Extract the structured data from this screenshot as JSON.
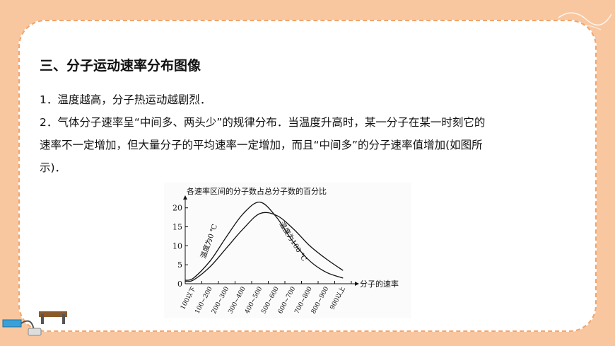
{
  "slide": {
    "title": "三、分子运动速率分布图像",
    "line1": "1．温度越高，分子热运动越剧烈．",
    "line2": "2．气体分子速率呈“中间多、两头少”的规律分布．当温度升高时，某一分子在某一时刻它的",
    "line3": "速率不一定增加，但大量分子的平均速率一定增加，而且“中间多”的分子速率值增加(如图所",
    "line4": "示)．"
  },
  "chart_data": {
    "type": "line",
    "title": "各速率区间的分子数占总分子数的百分比",
    "xlabel": "分子的速率",
    "ylabel": "",
    "categories": [
      "100以下",
      "100~200",
      "200~300",
      "300~400",
      "400~500",
      "500~600",
      "600~700",
      "700~800",
      "800~900",
      "900以上"
    ],
    "yticks": [
      "0",
      "5",
      "10",
      "15",
      "20"
    ],
    "ylim": [
      0,
      22
    ],
    "series": [
      {
        "name": "温度为0 ℃",
        "values": [
          1.5,
          6.0,
          12.5,
          18.5,
          21.5,
          17.5,
          11.0,
          6.0,
          3.0,
          1.5
        ]
      },
      {
        "name": "温度为100 ℃",
        "values": [
          1.0,
          4.5,
          9.5,
          14.5,
          18.5,
          18.0,
          14.5,
          10.0,
          6.5,
          3.5
        ]
      }
    ],
    "grid": false
  },
  "colors": {
    "frame": "#f8c7a0",
    "border": "#f3a56c",
    "card": "#ffffff"
  },
  "icons": {
    "corner": "formula-doodle-icon",
    "bottom-left": "circuit-switch-icon"
  }
}
